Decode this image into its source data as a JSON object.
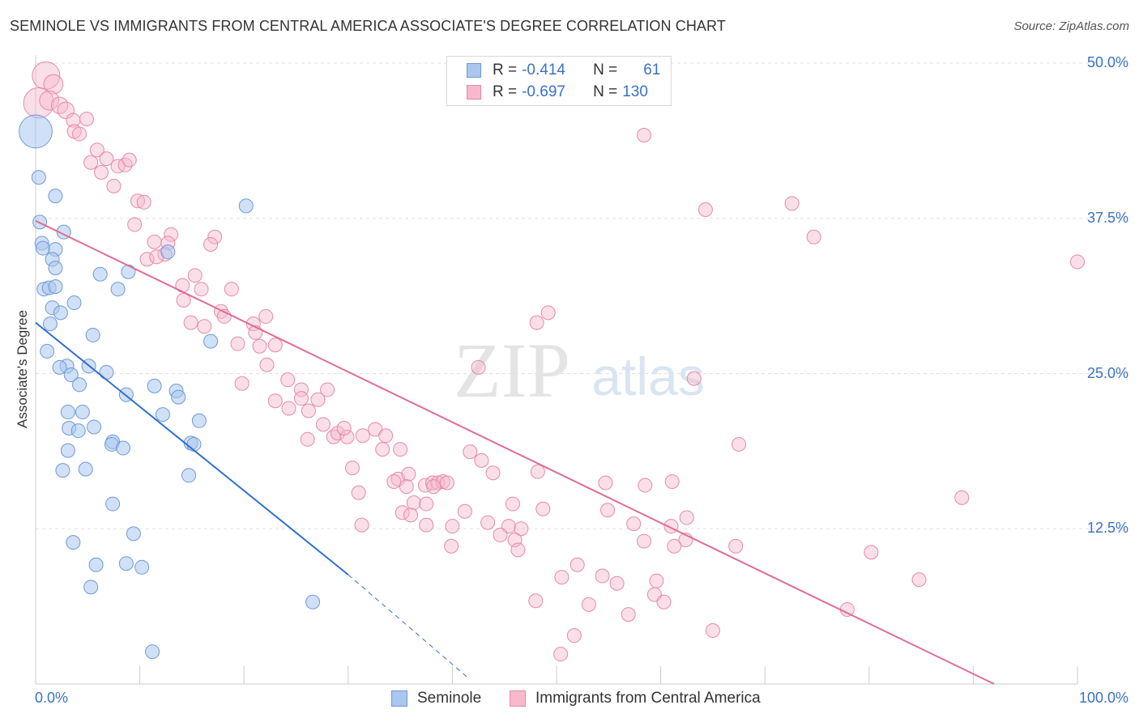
{
  "title": "SEMINOLE VS IMMIGRANTS FROM CENTRAL AMERICA ASSOCIATE'S DEGREE CORRELATION CHART",
  "source": "Source: ZipAtlas.com",
  "watermark": {
    "zip": "ZIP",
    "atlas": "atlas"
  },
  "legend": {
    "rows": [
      {
        "r_label": "R =",
        "r_value": "-0.414",
        "n_label": "N =",
        "n_value": "61",
        "color": "#a9c7ef",
        "border": "#6f9ad6"
      },
      {
        "r_label": "R =",
        "r_value": "-0.697",
        "n_label": "N =",
        "n_value": "130",
        "color": "#f7b9cb",
        "border": "#e58aa6"
      }
    ]
  },
  "bottom_legend": [
    {
      "label": "Seminole",
      "color": "#a9c7ef",
      "border": "#6f9ad6"
    },
    {
      "label": "Immigrants from Central America",
      "color": "#f7b9cb",
      "border": "#e58aa6"
    }
  ],
  "colors": {
    "blue_line": "#2f6fcf",
    "pink_line": "#e06c95",
    "grid": "#e0e0e0",
    "tick_text": "#3a72c6"
  },
  "chart_data": {
    "type": "scatter",
    "title": "SEMINOLE VS IMMIGRANTS FROM CENTRAL AMERICA ASSOCIATE'S DEGREE CORRELATION CHART",
    "xlabel": "",
    "ylabel": "Associate's Degree",
    "xlim": [
      0,
      100
    ],
    "ylim": [
      0,
      50
    ],
    "x_tick_labels": [
      "0.0%",
      "100.0%"
    ],
    "y_ticks": [
      12.5,
      25.0,
      37.5,
      50.0
    ],
    "y_tick_labels": [
      "12.5%",
      "25.0%",
      "37.5%",
      "50.0%"
    ],
    "grid": true,
    "legend_position": "top-center",
    "series": [
      {
        "name": "Seminole",
        "R": -0.414,
        "N": 61,
        "trend": {
          "x": [
            0,
            30
          ],
          "y": [
            29.1,
            8.8
          ],
          "dashed_to": [
            41.5,
            0.5
          ]
        },
        "points": [
          [
            0.0,
            44.5,
            24
          ],
          [
            0.3,
            40.8,
            10
          ],
          [
            1.9,
            39.3,
            10
          ],
          [
            20.2,
            38.5,
            10
          ],
          [
            0.4,
            37.2,
            10
          ],
          [
            2.7,
            36.4,
            10
          ],
          [
            0.6,
            35.5,
            10
          ],
          [
            0.7,
            35.1,
            10
          ],
          [
            1.9,
            35.0,
            10
          ],
          [
            1.6,
            34.2,
            10
          ],
          [
            12.7,
            34.8,
            10
          ],
          [
            1.9,
            33.5,
            10
          ],
          [
            6.2,
            33.0,
            10
          ],
          [
            8.9,
            33.2,
            10
          ],
          [
            0.8,
            31.8,
            10
          ],
          [
            1.3,
            31.9,
            10
          ],
          [
            1.9,
            32.0,
            10
          ],
          [
            7.9,
            31.8,
            10
          ],
          [
            1.6,
            30.3,
            10
          ],
          [
            3.7,
            30.7,
            10
          ],
          [
            2.4,
            29.9,
            10
          ],
          [
            1.4,
            29.0,
            10
          ],
          [
            5.5,
            28.1,
            10
          ],
          [
            16.8,
            27.6,
            10
          ],
          [
            1.1,
            26.8,
            10
          ],
          [
            3.0,
            25.6,
            10
          ],
          [
            2.3,
            25.5,
            10
          ],
          [
            5.1,
            25.6,
            10
          ],
          [
            3.4,
            24.9,
            10
          ],
          [
            6.8,
            25.1,
            10
          ],
          [
            4.2,
            24.1,
            10
          ],
          [
            11.4,
            24.0,
            10
          ],
          [
            8.7,
            23.3,
            10
          ],
          [
            13.5,
            23.6,
            10
          ],
          [
            13.7,
            23.1,
            10
          ],
          [
            3.1,
            21.9,
            10
          ],
          [
            4.5,
            21.9,
            10
          ],
          [
            12.2,
            21.7,
            10
          ],
          [
            15.7,
            21.2,
            10
          ],
          [
            3.2,
            20.6,
            10
          ],
          [
            5.6,
            20.7,
            10
          ],
          [
            4.1,
            20.4,
            10
          ],
          [
            7.4,
            19.5,
            10
          ],
          [
            14.9,
            19.4,
            10
          ],
          [
            7.3,
            19.3,
            10
          ],
          [
            15.2,
            19.3,
            10
          ],
          [
            8.4,
            19.0,
            10
          ],
          [
            3.1,
            18.8,
            10
          ],
          [
            2.6,
            17.2,
            10
          ],
          [
            4.8,
            17.3,
            10
          ],
          [
            14.7,
            16.8,
            10
          ],
          [
            7.4,
            14.5,
            10
          ],
          [
            9.4,
            12.1,
            10
          ],
          [
            3.6,
            11.4,
            10
          ],
          [
            5.8,
            9.6,
            10
          ],
          [
            8.7,
            9.7,
            10
          ],
          [
            10.2,
            9.4,
            10
          ],
          [
            5.3,
            7.8,
            10
          ],
          [
            26.6,
            6.6,
            10
          ],
          [
            11.2,
            2.6,
            10
          ]
        ]
      },
      {
        "name": "Immigrants from Central America",
        "R": -0.697,
        "N": 130,
        "trend": {
          "x": [
            0,
            92
          ],
          "y": [
            37.3,
            0.0
          ]
        },
        "points": [
          [
            1.0,
            49.0,
            20
          ],
          [
            1.7,
            48.3,
            14
          ],
          [
            0.3,
            46.8,
            22
          ],
          [
            1.3,
            47.0,
            14
          ],
          [
            2.3,
            46.6,
            12
          ],
          [
            2.9,
            46.2,
            12
          ],
          [
            3.6,
            45.4,
            10
          ],
          [
            4.9,
            45.5,
            10
          ],
          [
            3.7,
            44.5,
            10
          ],
          [
            4.2,
            44.3,
            10
          ],
          [
            58.4,
            44.2,
            10
          ],
          [
            5.9,
            43.0,
            10
          ],
          [
            6.8,
            42.3,
            10
          ],
          [
            5.3,
            42.0,
            10
          ],
          [
            7.9,
            41.7,
            10
          ],
          [
            8.6,
            41.8,
            10
          ],
          [
            9.0,
            42.2,
            10
          ],
          [
            6.3,
            41.2,
            10
          ],
          [
            7.5,
            40.1,
            10
          ],
          [
            9.8,
            38.9,
            10
          ],
          [
            10.4,
            38.8,
            10
          ],
          [
            64.3,
            38.2,
            10
          ],
          [
            72.6,
            38.7,
            10
          ],
          [
            9.5,
            37.0,
            10
          ],
          [
            13.0,
            36.2,
            10
          ],
          [
            17.2,
            36.0,
            10
          ],
          [
            11.4,
            35.6,
            10
          ],
          [
            12.7,
            35.5,
            10
          ],
          [
            74.7,
            36.0,
            10
          ],
          [
            16.8,
            35.4,
            10
          ],
          [
            12.4,
            34.6,
            10
          ],
          [
            10.7,
            34.2,
            10
          ],
          [
            11.6,
            34.4,
            10
          ],
          [
            100.0,
            34.0,
            10
          ],
          [
            15.3,
            32.9,
            10
          ],
          [
            14.1,
            32.1,
            10
          ],
          [
            15.9,
            31.8,
            10
          ],
          [
            18.8,
            31.8,
            10
          ],
          [
            14.2,
            30.9,
            10
          ],
          [
            17.8,
            30.0,
            10
          ],
          [
            18.1,
            29.6,
            10
          ],
          [
            22.1,
            29.6,
            10
          ],
          [
            49.2,
            29.9,
            10
          ],
          [
            14.9,
            29.1,
            10
          ],
          [
            20.9,
            29.0,
            10
          ],
          [
            16.2,
            28.8,
            10
          ],
          [
            48.1,
            29.1,
            10
          ],
          [
            21.1,
            28.3,
            10
          ],
          [
            19.4,
            27.4,
            10
          ],
          [
            21.5,
            27.2,
            10
          ],
          [
            23.0,
            27.3,
            10
          ],
          [
            22.2,
            25.7,
            10
          ],
          [
            42.5,
            25.5,
            10
          ],
          [
            24.2,
            24.5,
            10
          ],
          [
            63.2,
            24.6,
            10
          ],
          [
            19.8,
            24.2,
            10
          ],
          [
            25.5,
            23.7,
            10
          ],
          [
            23.0,
            22.8,
            10
          ],
          [
            25.5,
            23.0,
            10
          ],
          [
            27.1,
            22.9,
            10
          ],
          [
            28.0,
            23.7,
            10
          ],
          [
            24.3,
            22.2,
            10
          ],
          [
            26.2,
            22.0,
            10
          ],
          [
            26.1,
            19.7,
            10
          ],
          [
            27.6,
            20.9,
            10
          ],
          [
            28.6,
            19.9,
            10
          ],
          [
            29.0,
            20.2,
            10
          ],
          [
            29.9,
            19.9,
            10
          ],
          [
            31.4,
            20.0,
            10
          ],
          [
            29.6,
            20.6,
            10
          ],
          [
            32.6,
            20.5,
            10
          ],
          [
            33.6,
            20.0,
            10
          ],
          [
            33.3,
            18.9,
            10
          ],
          [
            35.0,
            18.9,
            10
          ],
          [
            41.7,
            18.7,
            10
          ],
          [
            67.5,
            19.3,
            10
          ],
          [
            42.8,
            18.0,
            10
          ],
          [
            30.4,
            17.4,
            10
          ],
          [
            34.8,
            16.5,
            10
          ],
          [
            35.8,
            16.9,
            10
          ],
          [
            43.9,
            17.0,
            10
          ],
          [
            48.2,
            17.1,
            10
          ],
          [
            34.4,
            16.3,
            10
          ],
          [
            35.6,
            15.9,
            10
          ],
          [
            37.4,
            16.0,
            10
          ],
          [
            38.1,
            16.2,
            10
          ],
          [
            38.6,
            16.2,
            10
          ],
          [
            39.1,
            16.3,
            10
          ],
          [
            39.5,
            16.2,
            10
          ],
          [
            38.2,
            15.9,
            10
          ],
          [
            54.7,
            16.2,
            10
          ],
          [
            58.5,
            16.0,
            10
          ],
          [
            61.1,
            16.3,
            10
          ],
          [
            31.0,
            15.4,
            10
          ],
          [
            36.3,
            14.6,
            10
          ],
          [
            37.5,
            14.5,
            10
          ],
          [
            45.8,
            14.5,
            10
          ],
          [
            88.9,
            15.0,
            10
          ],
          [
            35.2,
            13.8,
            10
          ],
          [
            36.0,
            13.6,
            10
          ],
          [
            41.2,
            13.9,
            10
          ],
          [
            48.7,
            14.1,
            10
          ],
          [
            54.9,
            14.0,
            10
          ],
          [
            62.5,
            13.4,
            10
          ],
          [
            31.3,
            12.8,
            10
          ],
          [
            37.5,
            12.8,
            10
          ],
          [
            40.0,
            12.7,
            10
          ],
          [
            43.4,
            13.0,
            10
          ],
          [
            45.4,
            12.7,
            10
          ],
          [
            46.6,
            12.5,
            10
          ],
          [
            57.4,
            12.9,
            10
          ],
          [
            61.0,
            12.7,
            10
          ],
          [
            44.6,
            12.0,
            10
          ],
          [
            46.0,
            11.6,
            10
          ],
          [
            58.4,
            11.5,
            10
          ],
          [
            62.4,
            11.6,
            10
          ],
          [
            67.2,
            11.1,
            10
          ],
          [
            61.3,
            11.1,
            10
          ],
          [
            39.9,
            11.1,
            10
          ],
          [
            46.3,
            10.8,
            10
          ],
          [
            80.2,
            10.6,
            10
          ],
          [
            52.0,
            9.6,
            10
          ],
          [
            50.5,
            8.6,
            10
          ],
          [
            54.4,
            8.7,
            10
          ],
          [
            55.8,
            8.1,
            10
          ],
          [
            59.6,
            8.3,
            10
          ],
          [
            53.1,
            6.4,
            10
          ],
          [
            59.4,
            7.2,
            10
          ],
          [
            60.3,
            6.6,
            10
          ],
          [
            84.8,
            8.4,
            10
          ],
          [
            48.0,
            6.7,
            10
          ],
          [
            56.9,
            5.6,
            10
          ],
          [
            77.9,
            6.0,
            10
          ],
          [
            51.7,
            3.9,
            10
          ],
          [
            65.0,
            4.3,
            10
          ],
          [
            50.4,
            2.4,
            10
          ]
        ]
      }
    ]
  }
}
